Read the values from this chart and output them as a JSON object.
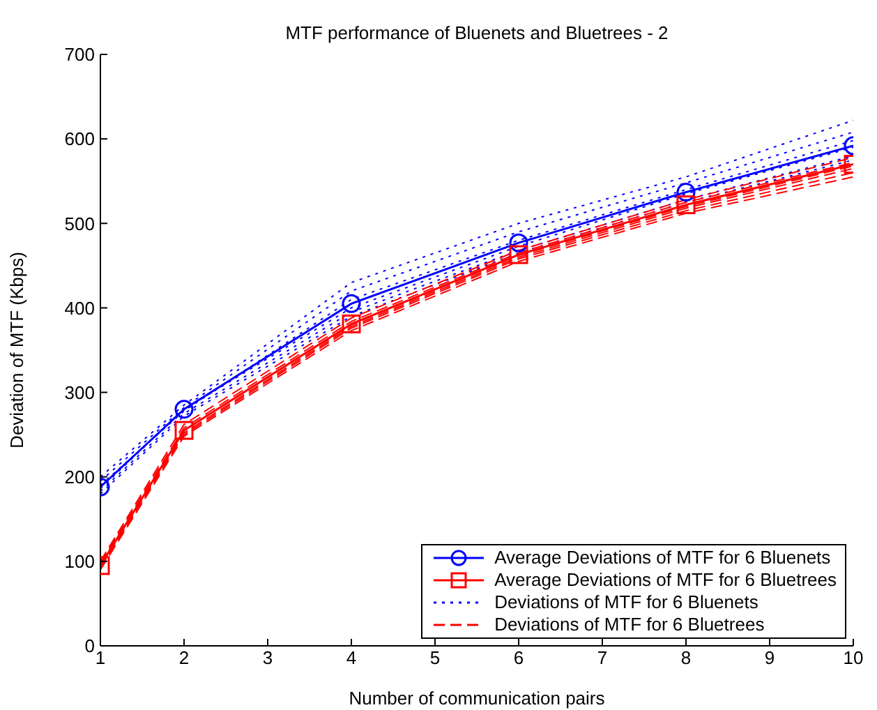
{
  "chart_data": {
    "type": "line",
    "title": "MTF performance of Bluenets and Bluetrees - 2",
    "xlabel": "Number of communication pairs",
    "ylabel": "Deviation of MTF (Kbps)",
    "x": [
      1,
      2,
      4,
      6,
      8,
      10
    ],
    "series": [
      {
        "name": "Average Deviations of MTF for 6 Bluenets",
        "color": "#0000ff",
        "marker": "circle",
        "line_style": "solid",
        "values": [
          188,
          280,
          405,
          477,
          537,
          592
        ]
      },
      {
        "name": "Average Deviations of MTF for 6 Bluetrees",
        "color": "#ff0000",
        "marker": "square",
        "line_style": "solid",
        "values": [
          95,
          255,
          381,
          463,
          522,
          570
        ]
      },
      {
        "name": "Deviations of MTF for 6 Bluenets",
        "color": "#0000ff",
        "marker": "none",
        "line_style": "dotted",
        "values": [
          200,
          285,
          430,
          500,
          555,
          622
        ]
      },
      {
        "color": "#0000ff",
        "marker": "none",
        "line_style": "dotted",
        "values": [
          195,
          282,
          420,
          490,
          548,
          608
        ]
      },
      {
        "color": "#0000ff",
        "marker": "none",
        "line_style": "dotted",
        "values": [
          190,
          278,
          410,
          480,
          540,
          598
        ]
      },
      {
        "color": "#0000ff",
        "marker": "none",
        "line_style": "dotted",
        "values": [
          186,
          280,
          400,
          473,
          535,
          590
        ]
      },
      {
        "color": "#0000ff",
        "marker": "none",
        "line_style": "dotted",
        "values": [
          183,
          275,
          395,
          468,
          528,
          580
        ]
      },
      {
        "color": "#0000ff",
        "marker": "none",
        "line_style": "dotted",
        "values": [
          180,
          272,
          390,
          465,
          525,
          575
        ]
      },
      {
        "name": "Deviations of MTF for 6 Bluetrees",
        "color": "#ff0000",
        "marker": "none",
        "line_style": "dashed",
        "values": [
          100,
          262,
          388,
          468,
          528,
          578
        ]
      },
      {
        "color": "#ff0000",
        "marker": "none",
        "line_style": "dashed",
        "values": [
          98,
          258,
          384,
          465,
          525,
          572
        ]
      },
      {
        "color": "#ff0000",
        "marker": "none",
        "line_style": "dashed",
        "values": [
          96,
          255,
          380,
          462,
          520,
          568
        ]
      },
      {
        "color": "#ff0000",
        "marker": "none",
        "line_style": "dashed",
        "values": [
          94,
          252,
          378,
          460,
          518,
          565
        ]
      },
      {
        "color": "#ff0000",
        "marker": "none",
        "line_style": "dashed",
        "values": [
          92,
          250,
          376,
          458,
          515,
          560
        ]
      },
      {
        "color": "#ff0000",
        "marker": "none",
        "line_style": "dashed",
        "values": [
          90,
          248,
          373,
          455,
          512,
          555
        ]
      }
    ],
    "xlim": [
      1,
      10
    ],
    "xticks": [
      1,
      2,
      3,
      4,
      5,
      6,
      7,
      8,
      9,
      10
    ],
    "ylim": [
      0,
      700
    ],
    "yticks": [
      0,
      100,
      200,
      300,
      400,
      500,
      600,
      700
    ],
    "grid": false,
    "legend": "bottom right"
  }
}
